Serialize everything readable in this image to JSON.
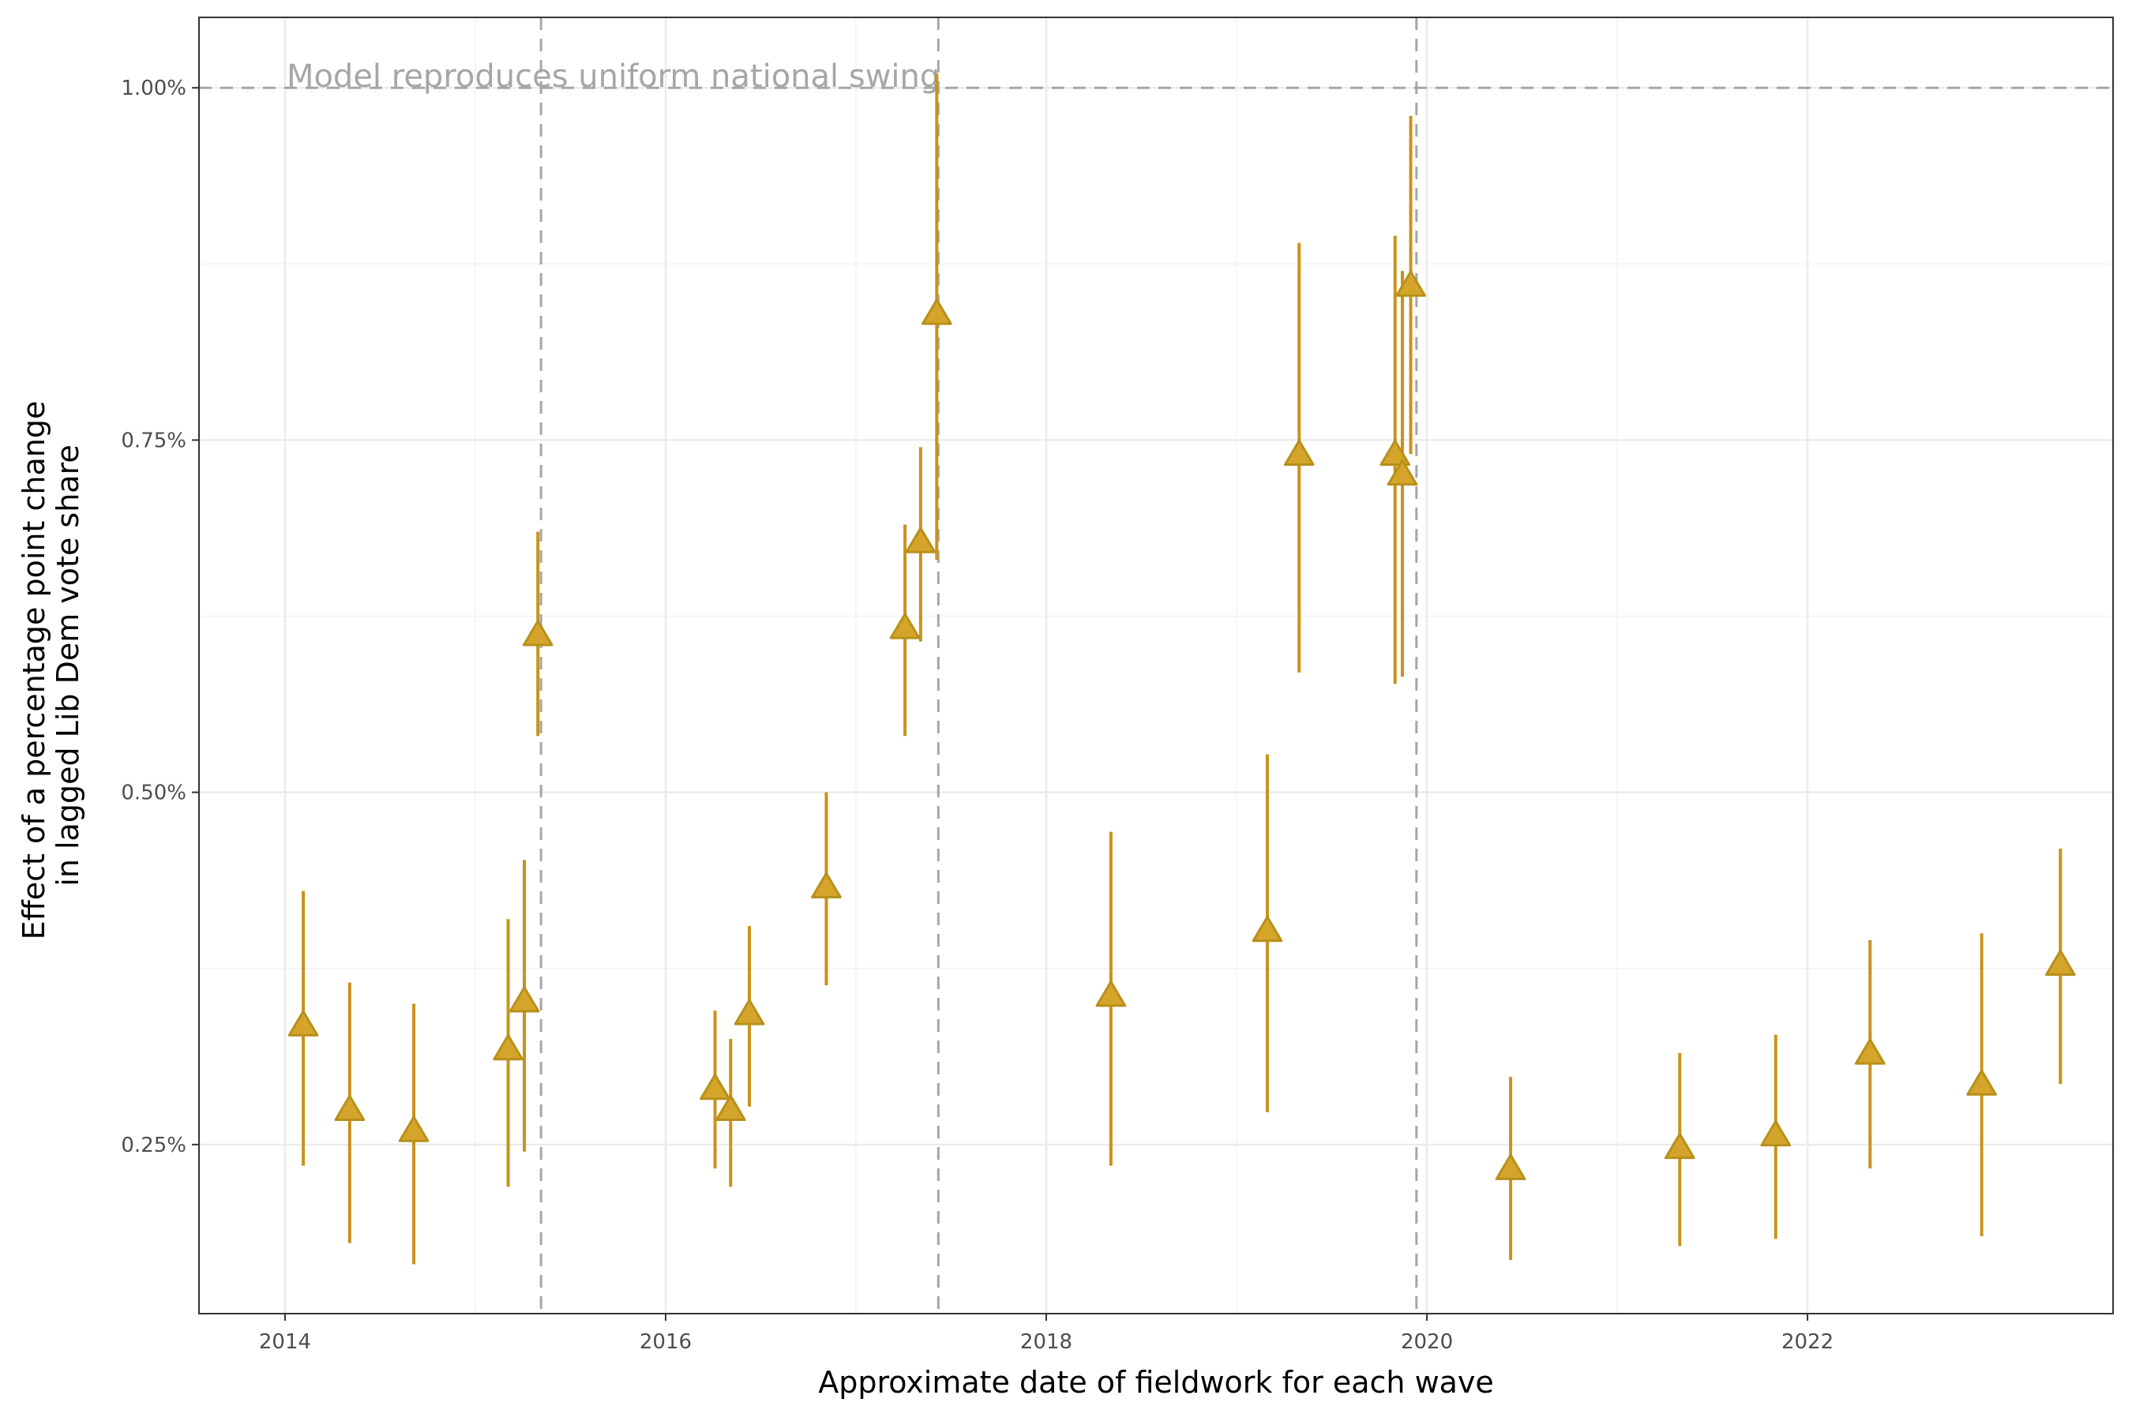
{
  "chart_data": {
    "type": "scatter",
    "xlabel": "Approximate date of fieldwork for each wave",
    "ylabel_lines": [
      "Effect of a percentage point change",
      "in lagged Lib Dem vote share"
    ],
    "annotation": "Model reproduces uniform national swing",
    "xlim": [
      "2013-07-20",
      "2023-08-10"
    ],
    "ylim": [
      0.0013,
      0.0105
    ],
    "x_ticks": [
      {
        "date": "2014-01-01",
        "label": "2014"
      },
      {
        "date": "2016-01-01",
        "label": "2016"
      },
      {
        "date": "2018-01-01",
        "label": "2018"
      },
      {
        "date": "2020-01-01",
        "label": "2020"
      },
      {
        "date": "2022-01-01",
        "label": "2022"
      }
    ],
    "y_ticks": [
      {
        "value": 0.0025,
        "label": "0.25%"
      },
      {
        "value": 0.005,
        "label": "0.50%"
      },
      {
        "value": 0.0075,
        "label": "0.75%"
      },
      {
        "value": 0.01,
        "label": "1.00%"
      }
    ],
    "reference_hline": 0.01,
    "election_vlines": [
      "2015-05-07",
      "2017-06-08",
      "2019-12-12"
    ],
    "grid": true,
    "marker": "triangle",
    "colors": {
      "point_fill": "#d4a52a",
      "point_stroke": "#b8901a",
      "error_bar": "#c9921a",
      "reference_line": "#a6a6a6"
    },
    "points": [
      {
        "date": "2014-02-05",
        "y": 0.00335,
        "lo": 0.00235,
        "hi": 0.0043
      },
      {
        "date": "2014-05-05",
        "y": 0.00275,
        "lo": 0.0018,
        "hi": 0.00365
      },
      {
        "date": "2014-09-05",
        "y": 0.0026,
        "lo": 0.00165,
        "hi": 0.0035
      },
      {
        "date": "2015-03-05",
        "y": 0.00318,
        "lo": 0.0022,
        "hi": 0.0041
      },
      {
        "date": "2015-04-05",
        "y": 0.00352,
        "lo": 0.00245,
        "hi": 0.00452
      },
      {
        "date": "2015-05-01",
        "y": 0.00612,
        "lo": 0.0054,
        "hi": 0.00685
      },
      {
        "date": "2016-04-05",
        "y": 0.0029,
        "lo": 0.00233,
        "hi": 0.00345
      },
      {
        "date": "2016-05-05",
        "y": 0.00275,
        "lo": 0.0022,
        "hi": 0.00325
      },
      {
        "date": "2016-06-10",
        "y": 0.00343,
        "lo": 0.00277,
        "hi": 0.00405
      },
      {
        "date": "2016-11-05",
        "y": 0.00433,
        "lo": 0.00363,
        "hi": 0.005
      },
      {
        "date": "2017-04-05",
        "y": 0.00617,
        "lo": 0.0054,
        "hi": 0.0069
      },
      {
        "date": "2017-05-05",
        "y": 0.00678,
        "lo": 0.00607,
        "hi": 0.00745
      },
      {
        "date": "2017-06-05",
        "y": 0.0084,
        "lo": 0.00665,
        "hi": 0.0101
      },
      {
        "date": "2018-05-05",
        "y": 0.00356,
        "lo": 0.00235,
        "hi": 0.00472
      },
      {
        "date": "2019-03-01",
        "y": 0.00402,
        "lo": 0.00273,
        "hi": 0.00527
      },
      {
        "date": "2019-05-01",
        "y": 0.0074,
        "lo": 0.00585,
        "hi": 0.0089
      },
      {
        "date": "2019-11-01",
        "y": 0.0074,
        "lo": 0.00577,
        "hi": 0.00895
      },
      {
        "date": "2019-11-15",
        "y": 0.00726,
        "lo": 0.00582,
        "hi": 0.0087
      },
      {
        "date": "2019-12-01",
        "y": 0.0086,
        "lo": 0.0074,
        "hi": 0.0098
      },
      {
        "date": "2020-06-10",
        "y": 0.00233,
        "lo": 0.00168,
        "hi": 0.00298
      },
      {
        "date": "2021-05-01",
        "y": 0.00248,
        "lo": 0.00178,
        "hi": 0.00315
      },
      {
        "date": "2021-11-01",
        "y": 0.00257,
        "lo": 0.00183,
        "hi": 0.00328
      },
      {
        "date": "2022-05-01",
        "y": 0.00315,
        "lo": 0.00233,
        "hi": 0.00395
      },
      {
        "date": "2022-12-01",
        "y": 0.00293,
        "lo": 0.00185,
        "hi": 0.004
      },
      {
        "date": "2023-05-01",
        "y": 0.00378,
        "lo": 0.00293,
        "hi": 0.0046
      }
    ]
  }
}
